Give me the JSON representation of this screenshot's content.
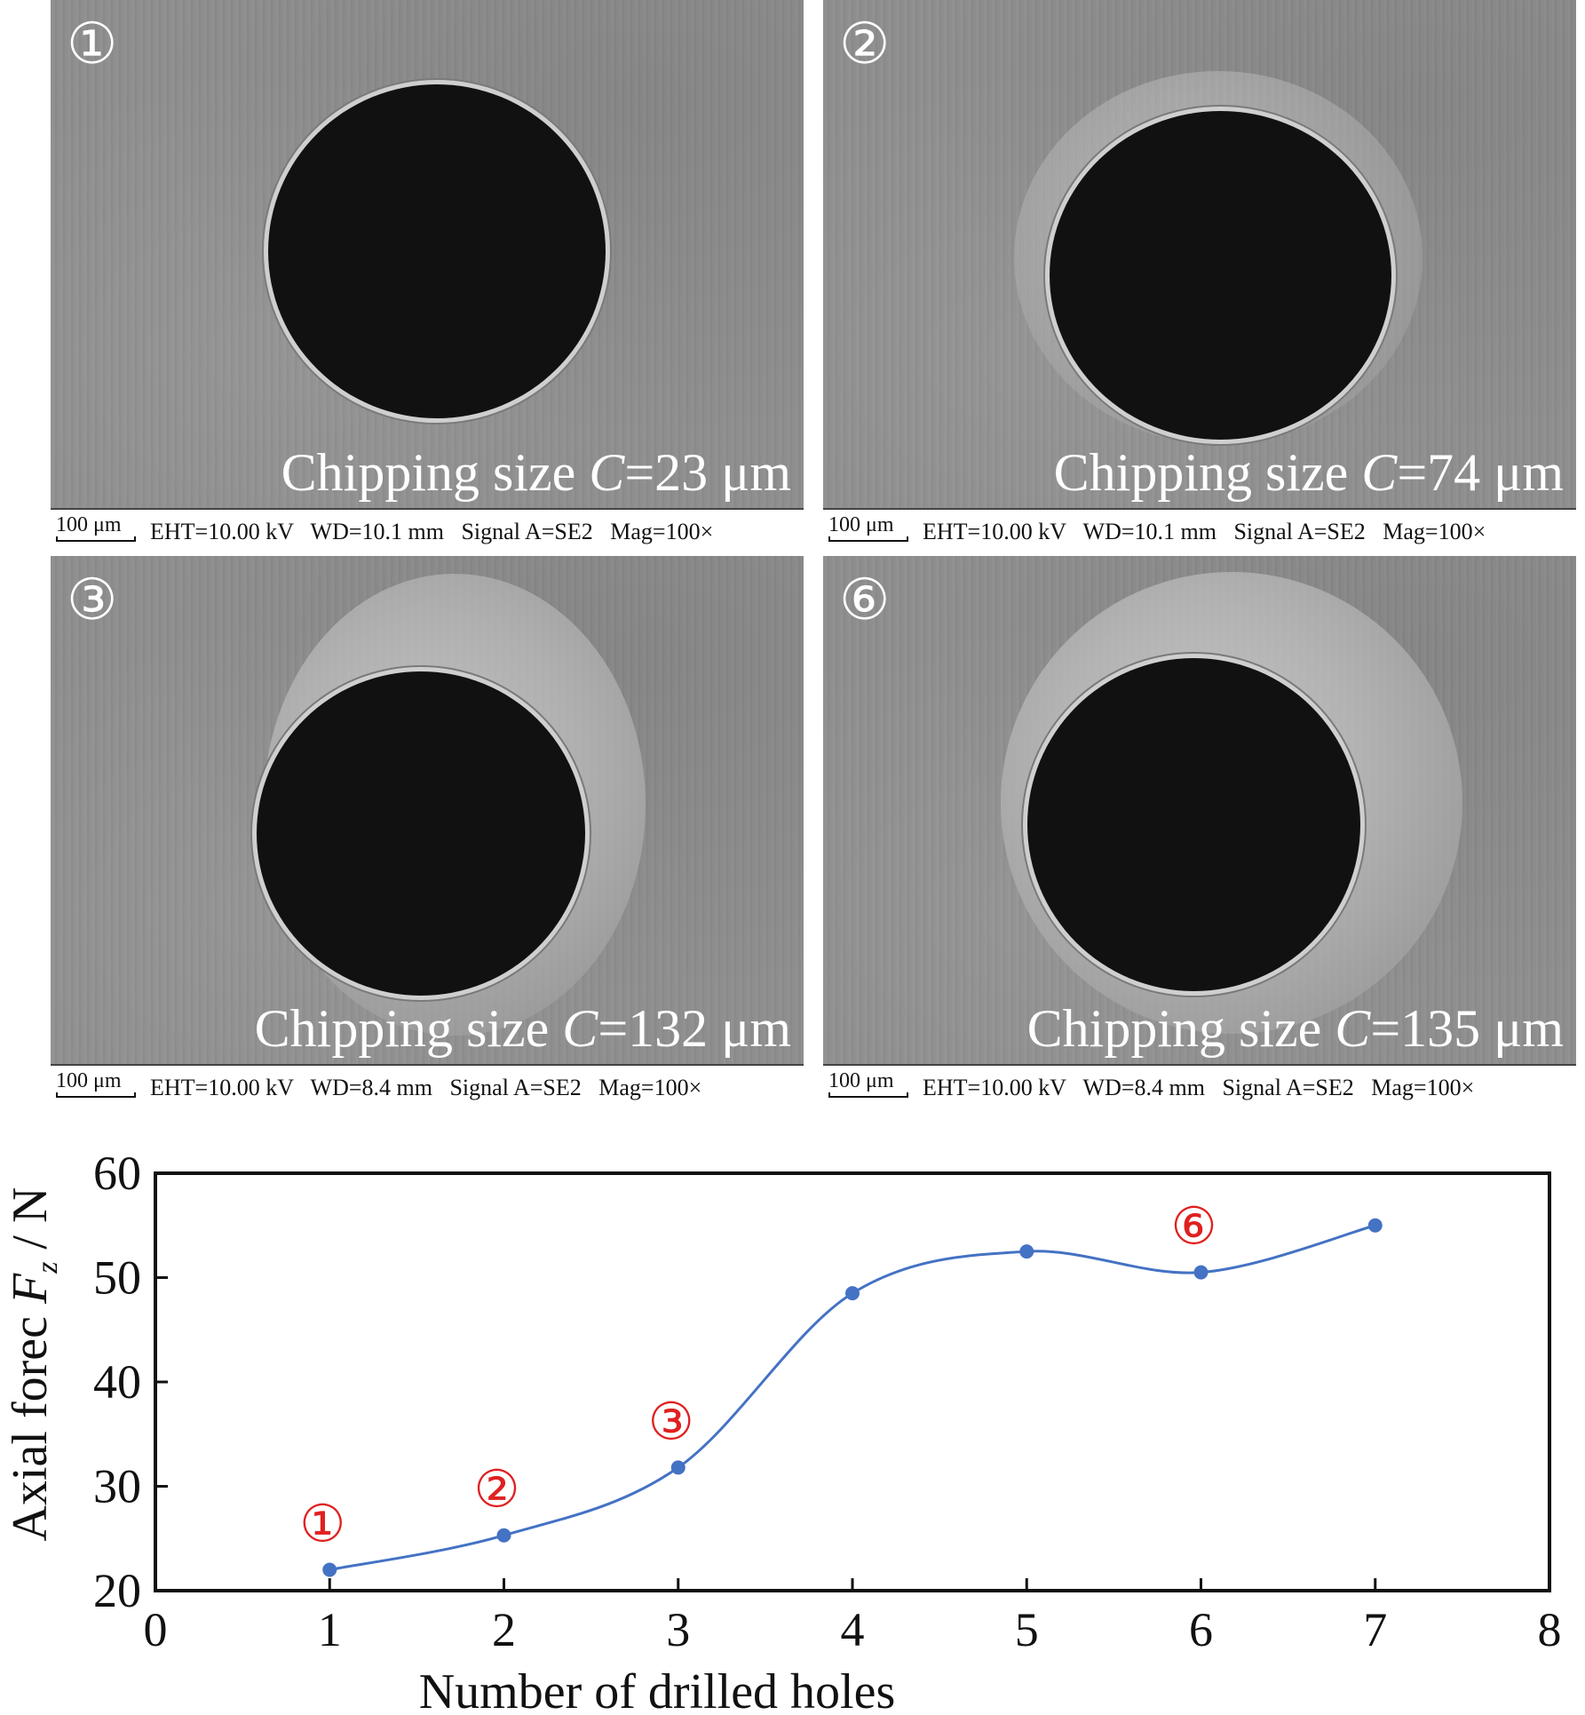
{
  "panels": [
    {
      "marker": "①",
      "label_prefix": "Chipping size ",
      "label_var": "C",
      "label_value": "=23 μm",
      "scale": "100 μm",
      "meta": "EHT=10.00 kV   WD=10.1 mm   Signal A=SE2   Mag=100×"
    },
    {
      "marker": "②",
      "label_prefix": "Chipping size ",
      "label_var": "C",
      "label_value": "=74 μm",
      "scale": "100 μm",
      "meta": "EHT=10.00 kV   WD=10.1 mm   Signal A=SE2   Mag=100×"
    },
    {
      "marker": "③",
      "label_prefix": "Chipping size ",
      "label_var": "C",
      "label_value": "=132 μm",
      "scale": "100 μm",
      "meta": "EHT=10.00 kV   WD=8.4 mm   Signal A=SE2   Mag=100×"
    },
    {
      "marker": "⑥",
      "label_prefix": "Chipping size ",
      "label_var": "C",
      "label_value": "=135 μm",
      "scale": "100 μm",
      "meta": "EHT=10.00 kV   WD=8.4 mm   Signal A=SE2   Mag=100×"
    }
  ],
  "chart_data": {
    "type": "line",
    "x": [
      1,
      2,
      3,
      4,
      5,
      6,
      7
    ],
    "series": [
      {
        "values": [
          22.0,
          25.3,
          31.8,
          48.5,
          52.5,
          50.5,
          55.0
        ],
        "color": "#4472c4"
      }
    ],
    "xlabel": "Number of drilled holes",
    "ylabel_prefix": "Axial forec ",
    "ylabel_var": "F",
    "ylabel_sub": "z",
    "ylabel_suffix": " / N",
    "xlim": [
      0,
      8
    ],
    "ylim": [
      20,
      60
    ],
    "xticks": [
      "0",
      "1",
      "2",
      "3",
      "4",
      "5",
      "6",
      "7",
      "8"
    ],
    "yticks": [
      "20",
      "30",
      "40",
      "50",
      "60"
    ],
    "annotations": [
      {
        "text": "①",
        "x": 1,
        "y": 22.0
      },
      {
        "text": "②",
        "x": 2,
        "y": 25.3
      },
      {
        "text": "③",
        "x": 3,
        "y": 31.8
      },
      {
        "text": "⑥",
        "x": 6,
        "y": 50.5
      }
    ],
    "annotation_color": "#e02020",
    "grid": false,
    "smooth": true
  }
}
